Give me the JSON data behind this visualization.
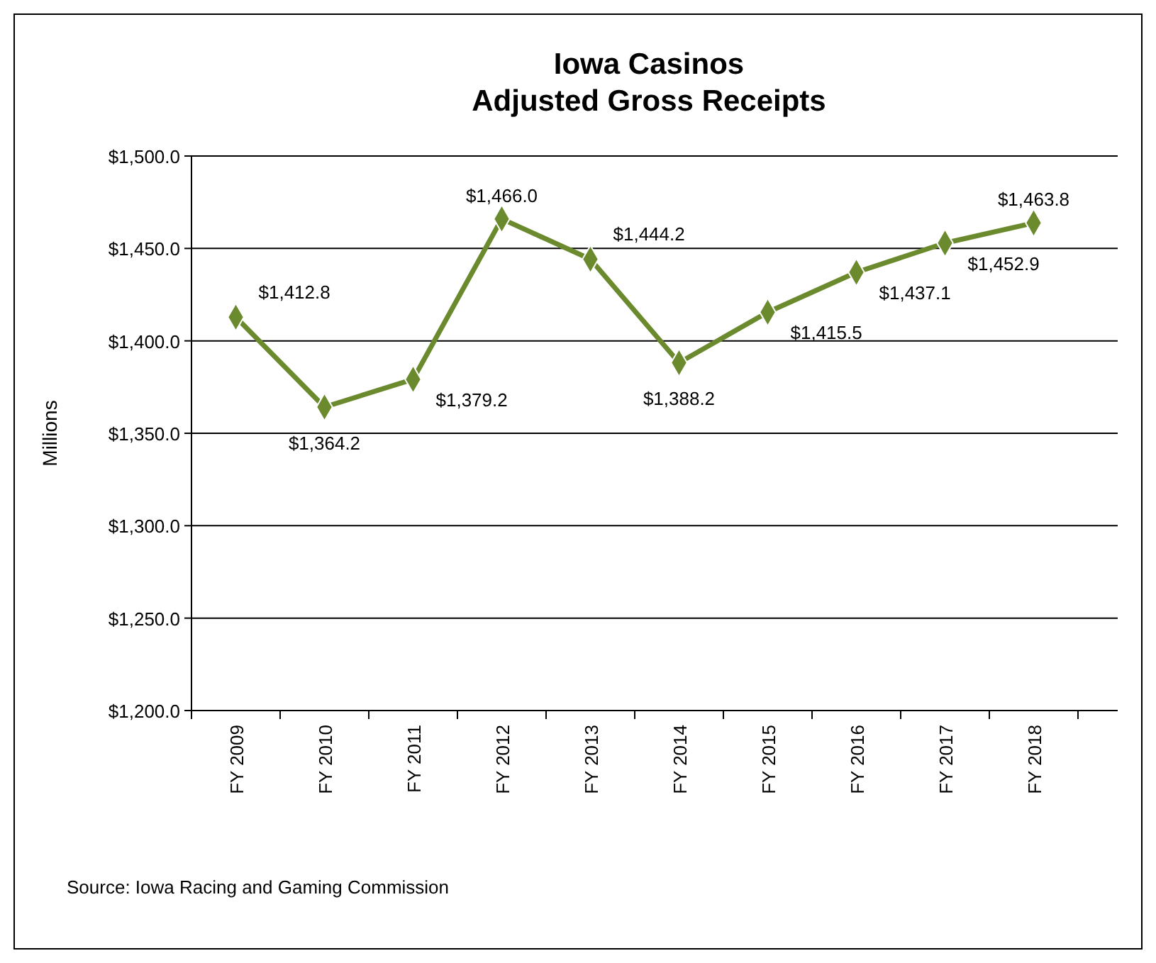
{
  "chart_data": {
    "type": "line",
    "title": "Iowa Casinos\nAdjusted Gross Receipts",
    "ylabel": "Millions",
    "categories": [
      "FY 2009",
      "FY 2010",
      "FY 2011",
      "FY 2012",
      "FY 2013",
      "FY 2014",
      "FY 2015",
      "FY 2016",
      "FY 2017",
      "FY 2018"
    ],
    "series": [
      {
        "color": "#6b8a2e",
        "values": [
          1412.8,
          1364.2,
          1379.2,
          1466.0,
          1444.2,
          1388.2,
          1415.5,
          1437.1,
          1452.9,
          1463.8
        ],
        "value_labels": [
          "$1,412.8",
          "$1,364.2",
          "$1,379.2",
          "$1,466.0",
          "$1,444.2",
          "$1,388.2",
          "$1,415.5",
          "$1,437.1",
          "$1,452.9",
          "$1,463.8"
        ]
      }
    ],
    "ylim": [
      1200,
      1500
    ],
    "yticks": [
      {
        "value": 1200,
        "label": "$1,200.0"
      },
      {
        "value": 1250,
        "label": "$1,250.0"
      },
      {
        "value": 1300,
        "label": "$1,300.0"
      },
      {
        "value": 1350,
        "label": "$1,350.0"
      },
      {
        "value": 1400,
        "label": "$1,400.0"
      },
      {
        "value": 1450,
        "label": "$1,450.0"
      },
      {
        "value": 1500,
        "label": "$1,500.0"
      }
    ],
    "grid": "y",
    "marker": "diamond",
    "line_style": "solid",
    "annotations": [
      "Source:  Iowa Racing and Gaming Commission"
    ]
  }
}
